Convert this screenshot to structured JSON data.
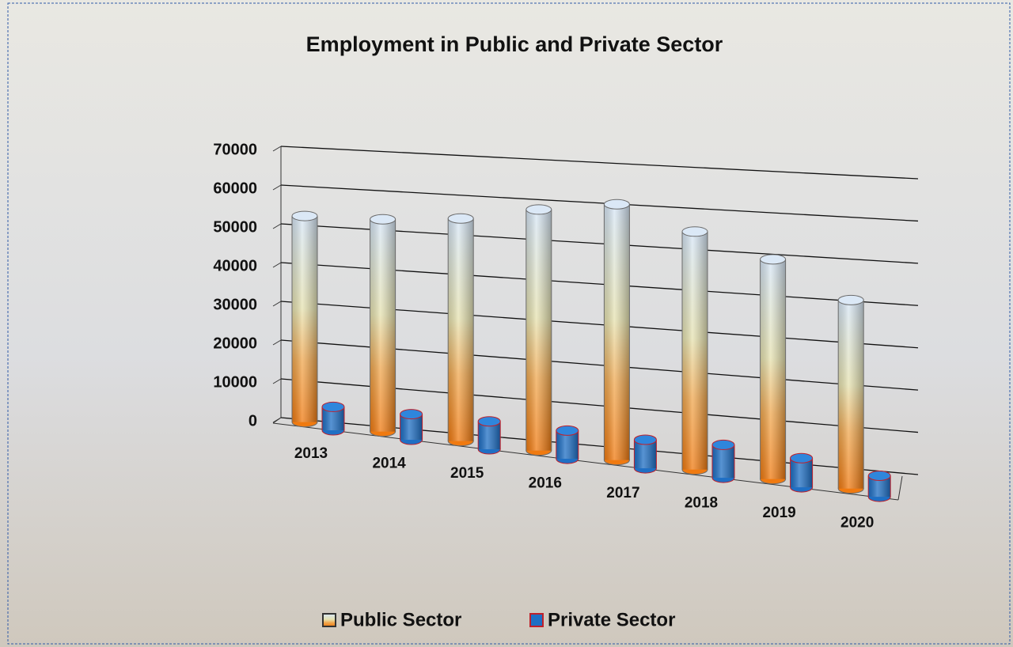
{
  "chart_data": {
    "type": "bar",
    "title": "Employment in Public and Private Sector",
    "categories": [
      "2013",
      "2014",
      "2015",
      "2016",
      "2017",
      "2018",
      "2019",
      "2020"
    ],
    "series": [
      {
        "name": "Public Sector",
        "color": "#f28a1e",
        "values": [
          53000,
          54000,
          56000,
          60000,
          63000,
          58000,
          53000,
          45000
        ]
      },
      {
        "name": "Private Sector",
        "color": "#1f6fc4",
        "values": [
          6000,
          6500,
          7000,
          7000,
          7000,
          8000,
          7000,
          5000
        ]
      }
    ],
    "ylim": [
      0,
      70000
    ],
    "yticks": [
      0,
      10000,
      20000,
      30000,
      40000,
      50000,
      60000,
      70000
    ],
    "grid": true
  }
}
